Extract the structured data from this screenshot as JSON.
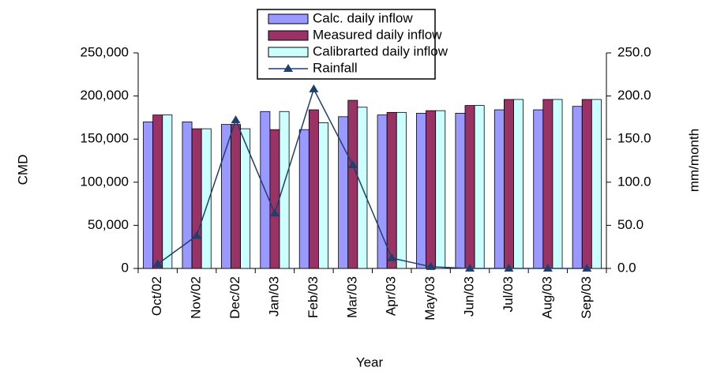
{
  "chart_data": {
    "type": "bar_line",
    "x_label": "Year",
    "y_label": "CMD",
    "y2_label": "mm/month",
    "categories": [
      "Oct/02",
      "Nov/02",
      "Dec/02",
      "Jan/03",
      "Feb/03",
      "Mar/03",
      "Apr/03",
      "May/03",
      "Jun/03",
      "Jul/03",
      "Aug/03",
      "Sep/03"
    ],
    "series": [
      {
        "name": "Calc. daily inflow",
        "color": "#9999ff",
        "type": "bar",
        "values": [
          170000,
          170000,
          167000,
          182000,
          161000,
          176000,
          178000,
          180000,
          180000,
          184000,
          184000,
          188000
        ]
      },
      {
        "name": "Measured daily inflow",
        "color": "#993366",
        "type": "bar",
        "values": [
          178000,
          162000,
          167000,
          161000,
          184000,
          195000,
          181000,
          183000,
          189000,
          196000,
          196000,
          196000
        ]
      },
      {
        "name": "Calibrarted daily inflow",
        "color": "#ccffff",
        "type": "bar",
        "values": [
          178000,
          162000,
          162000,
          182000,
          169000,
          187000,
          181000,
          183000,
          189000,
          196000,
          196000,
          196000
        ]
      },
      {
        "name": "Rainfall",
        "color": "#1f3f6e",
        "type": "line",
        "axis": "y2",
        "values": [
          5,
          38,
          172,
          64,
          208,
          120,
          12,
          2,
          0,
          0,
          0,
          0
        ]
      }
    ],
    "ylim": [
      0,
      250000
    ],
    "yticks": [
      {
        "value": 0,
        "label": "0"
      },
      {
        "value": 50000,
        "label": "50,000"
      },
      {
        "value": 100000,
        "label": "100,000"
      },
      {
        "value": 150000,
        "label": "150,000"
      },
      {
        "value": 200000,
        "label": "200,000"
      },
      {
        "value": 250000,
        "label": "250,000"
      }
    ],
    "y2lim": [
      0,
      250
    ],
    "y2ticks": [
      {
        "value": 0,
        "label": "0.0"
      },
      {
        "value": 50,
        "label": "50.0"
      },
      {
        "value": 100,
        "label": "100.0"
      },
      {
        "value": 150,
        "label": "150.0"
      },
      {
        "value": 200,
        "label": "200.0"
      },
      {
        "value": 250,
        "label": "250.0"
      }
    ]
  }
}
